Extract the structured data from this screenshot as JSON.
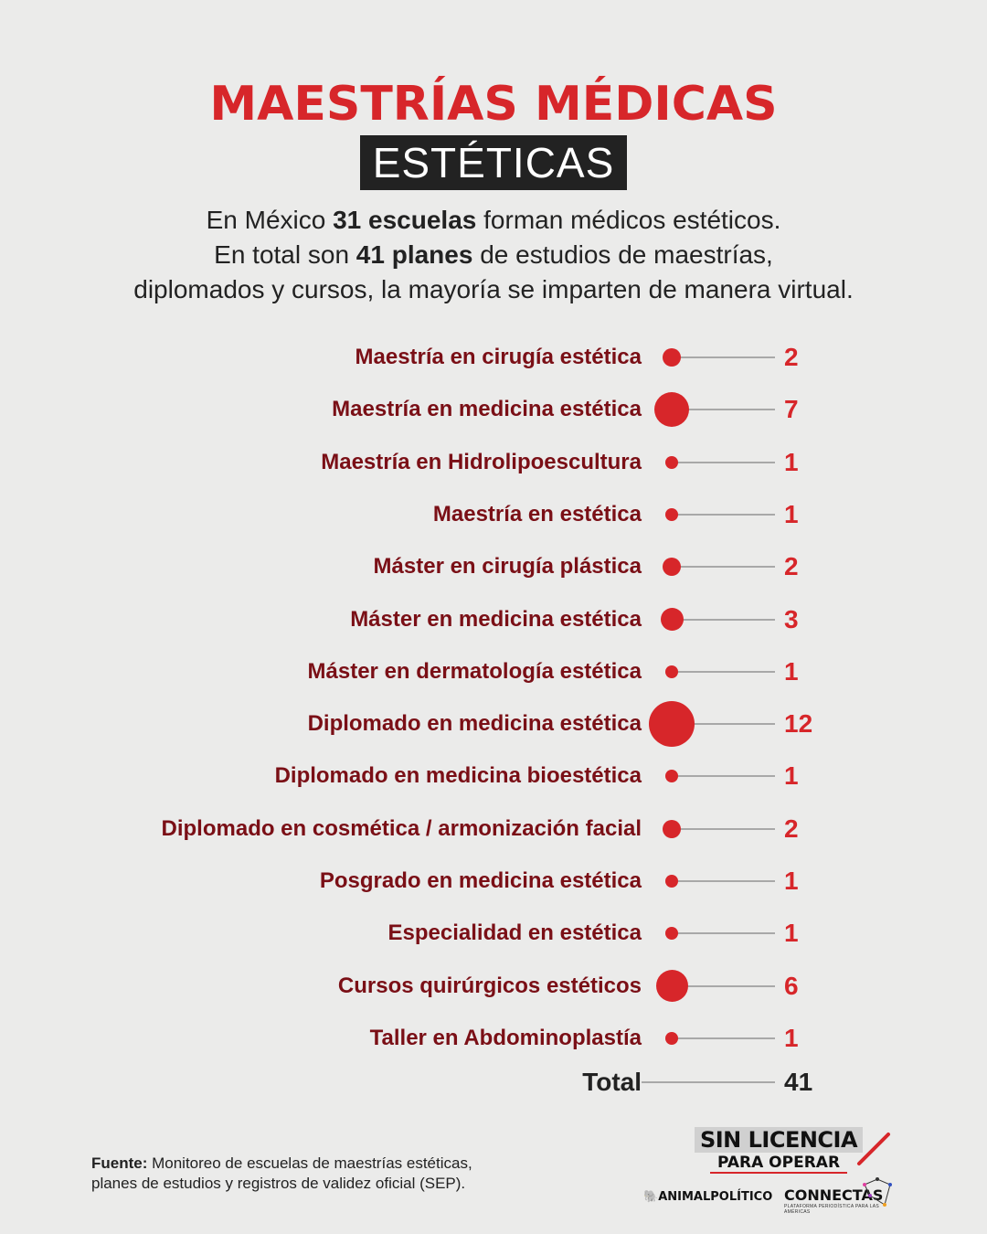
{
  "header": {
    "title": "MAESTRÍAS MÉDICAS",
    "subtitle": "ESTÉTICAS"
  },
  "intro": {
    "line1_pre": "En México ",
    "line1_bold": "31 escuelas",
    "line1_post": " forman médicos estéticos.",
    "line2_pre": "En total son ",
    "line2_bold": "41 planes",
    "line2_post": " de estudios de maestrías,",
    "line3": "diplomados y cursos, la mayoría se imparten de manera virtual."
  },
  "chart_data": {
    "type": "bubble-dot-list",
    "title": "Maestrías médicas estéticas",
    "categories": [
      "Maestría en cirugía estética",
      "Maestría en medicina estética",
      "Maestría en Hidrolipoescultura",
      "Maestría en estética",
      "Máster en cirugía plástica",
      "Máster en medicina estética",
      "Máster en dermatología estética",
      "Diplomado en medicina estética",
      "Diplomado en medicina bioestética",
      "Diplomado en cosmética / armonización facial",
      "Posgrado en medicina estética",
      "Especialidad en estética",
      "Cursos quirúrgicos estéticos",
      "Taller en Abdominoplastía"
    ],
    "values": [
      2,
      7,
      1,
      1,
      2,
      3,
      1,
      12,
      1,
      2,
      1,
      1,
      6,
      1
    ],
    "total_label": "Total",
    "total": 41,
    "colors": {
      "bubble": "#d7262a",
      "label": "#7a0f16",
      "value": "#d7262a",
      "line": "#a8a8a8"
    }
  },
  "rows": [
    {
      "label": "Maestría en cirugía estética",
      "value": "2"
    },
    {
      "label": "Maestría en medicina estética",
      "value": "7"
    },
    {
      "label": "Maestría en Hidrolipoescultura",
      "value": "1"
    },
    {
      "label": "Maestría en estética",
      "value": "1"
    },
    {
      "label": "Máster en cirugía plástica",
      "value": "2"
    },
    {
      "label": "Máster en medicina estética",
      "value": "3"
    },
    {
      "label": "Máster en dermatología estética",
      "value": "1"
    },
    {
      "label": "Diplomado en medicina estética",
      "value": "12"
    },
    {
      "label": "Diplomado en medicina bioestética",
      "value": "1"
    },
    {
      "label": "Diplomado en cosmética / armonización facial",
      "value": "2"
    },
    {
      "label": "Posgrado en medicina estética",
      "value": "1"
    },
    {
      "label": "Especialidad en estética",
      "value": "1"
    },
    {
      "label": "Cursos quirúrgicos estéticos",
      "value": "6"
    },
    {
      "label": "Taller en Abdominoplastía",
      "value": "1"
    }
  ],
  "total": {
    "label": "Total",
    "value": "41"
  },
  "source": {
    "label": "Fuente:",
    "text_line1": " Monitoreo de escuelas de maestrías estéticas,",
    "text_line2": "planes de estudios y registros de validez oficial (SEP)."
  },
  "logos": {
    "main_line1": "SIN LICENCIA",
    "main_line2": "PARA OPERAR",
    "partner1": "ANIMALPOLÍTICO",
    "partner2": "CONNECTAS",
    "partner2_tagline": "PLATAFORMA PERIODÍSTICA PARA LAS AMÉRICAS"
  }
}
